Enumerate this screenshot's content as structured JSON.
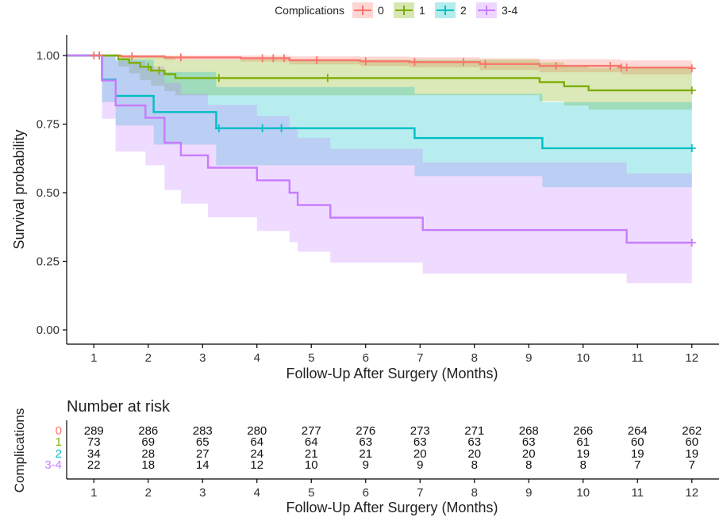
{
  "chart_data": [
    {
      "type": "line",
      "subtype": "kaplan-meier survival curve with confidence bands",
      "title": "",
      "xlabel": "Follow-Up After Surgery (Months)",
      "ylabel": "Survival probability",
      "xlim": [
        0.5,
        12.5
      ],
      "ylim": [
        0,
        1
      ],
      "x_ticks": [
        "1",
        "2",
        "3",
        "4",
        "5",
        "6",
        "7",
        "8",
        "9",
        "10",
        "11",
        "12"
      ],
      "y_ticks": [
        "0.00",
        "0.25",
        "0.50",
        "0.75",
        "1.00"
      ],
      "grid": false,
      "legend": {
        "title": "Complications",
        "position": "top",
        "entries": [
          "0",
          "1",
          "2",
          "3-4"
        ]
      },
      "series": [
        {
          "name": "0",
          "color": "#F8766D",
          "steps": [
            [
              0.5,
              1.0
            ],
            [
              1.5,
              0.997
            ],
            [
              2.3,
              0.993
            ],
            [
              3.7,
              0.99
            ],
            [
              4.6,
              0.983
            ],
            [
              5.9,
              0.979
            ],
            [
              6.8,
              0.976
            ],
            [
              8.1,
              0.969
            ],
            [
              9.2,
              0.962
            ],
            [
              10.7,
              0.956
            ],
            [
              12.0,
              0.953
            ]
          ],
          "upper": [
            [
              0.5,
              1.0
            ],
            [
              1.5,
              1.0
            ],
            [
              2.3,
              1.0
            ],
            [
              3.7,
              1.0
            ],
            [
              4.6,
              0.998
            ],
            [
              5.9,
              0.996
            ],
            [
              6.8,
              0.994
            ],
            [
              8.1,
              0.99
            ],
            [
              9.2,
              0.986
            ],
            [
              10.7,
              0.982
            ],
            [
              12.0,
              0.98
            ]
          ],
          "lower": [
            [
              0.5,
              1.0
            ],
            [
              1.5,
              0.99
            ],
            [
              2.3,
              0.984
            ],
            [
              3.7,
              0.978
            ],
            [
              4.6,
              0.968
            ],
            [
              5.9,
              0.962
            ],
            [
              6.8,
              0.957
            ],
            [
              8.1,
              0.947
            ],
            [
              9.2,
              0.939
            ],
            [
              10.7,
              0.931
            ],
            [
              12.0,
              0.926
            ]
          ],
          "censor_x": [
            1.0,
            1.1,
            1.7,
            2.6,
            4.1,
            4.3,
            4.5,
            5.1,
            6.0,
            6.9,
            7.8,
            8.2,
            9.5,
            10.5,
            10.7,
            10.8,
            12.0
          ]
        },
        {
          "name": "1",
          "color": "#7CAE00",
          "steps": [
            [
              0.5,
              1.0
            ],
            [
              1.45,
              0.986
            ],
            [
              1.65,
              0.973
            ],
            [
              1.85,
              0.959
            ],
            [
              2.05,
              0.945
            ],
            [
              2.3,
              0.932
            ],
            [
              2.5,
              0.918
            ],
            [
              9.2,
              0.903
            ],
            [
              9.65,
              0.888
            ],
            [
              10.1,
              0.873
            ],
            [
              12.0,
              0.873
            ]
          ],
          "upper": [
            [
              0.5,
              1.0
            ],
            [
              1.45,
              1.0
            ],
            [
              1.65,
              1.0
            ],
            [
              1.85,
              1.0
            ],
            [
              2.05,
              1.0
            ],
            [
              2.3,
              0.995
            ],
            [
              2.5,
              0.985
            ],
            [
              9.2,
              0.975
            ],
            [
              9.65,
              0.965
            ],
            [
              10.1,
              0.955
            ],
            [
              12.0,
              0.955
            ]
          ],
          "lower": [
            [
              0.5,
              1.0
            ],
            [
              1.45,
              0.96
            ],
            [
              1.65,
              0.935
            ],
            [
              1.85,
              0.91
            ],
            [
              2.05,
              0.89
            ],
            [
              2.3,
              0.87
            ],
            [
              2.5,
              0.855
            ],
            [
              9.2,
              0.833
            ],
            [
              9.65,
              0.818
            ],
            [
              10.1,
              0.803
            ],
            [
              12.0,
              0.803
            ]
          ],
          "censor_x": [
            2.0,
            2.2,
            3.3,
            5.3,
            12.0
          ]
        },
        {
          "name": "2",
          "color": "#00BFC4",
          "steps": [
            [
              0.5,
              1.0
            ],
            [
              1.15,
              0.912
            ],
            [
              1.4,
              0.853
            ],
            [
              2.1,
              0.794
            ],
            [
              3.25,
              0.735
            ],
            [
              6.9,
              0.699
            ],
            [
              9.25,
              0.662
            ],
            [
              12.0,
              0.662
            ]
          ],
          "upper": [
            [
              0.5,
              1.0
            ],
            [
              1.15,
              1.0
            ],
            [
              1.4,
              0.985
            ],
            [
              2.1,
              0.94
            ],
            [
              3.25,
              0.885
            ],
            [
              6.9,
              0.86
            ],
            [
              9.25,
              0.83
            ],
            [
              12.0,
              0.83
            ]
          ],
          "lower": [
            [
              0.5,
              1.0
            ],
            [
              1.15,
              0.83
            ],
            [
              1.4,
              0.745
            ],
            [
              2.1,
              0.675
            ],
            [
              3.25,
              0.6
            ],
            [
              6.9,
              0.56
            ],
            [
              9.25,
              0.52
            ],
            [
              12.0,
              0.52
            ]
          ],
          "censor_x": [
            3.3,
            4.1,
            4.45,
            12.0
          ]
        },
        {
          "name": "3-4",
          "color": "#C77CFF",
          "steps": [
            [
              0.5,
              1.0
            ],
            [
              1.15,
              0.909
            ],
            [
              1.4,
              0.818
            ],
            [
              1.95,
              0.773
            ],
            [
              2.3,
              0.682
            ],
            [
              2.6,
              0.636
            ],
            [
              3.1,
              0.591
            ],
            [
              4.0,
              0.545
            ],
            [
              4.6,
              0.5
            ],
            [
              4.75,
              0.455
            ],
            [
              5.35,
              0.409
            ],
            [
              7.05,
              0.364
            ],
            [
              10.8,
              0.318
            ],
            [
              12.0,
              0.318
            ]
          ],
          "upper": [
            [
              0.5,
              1.0
            ],
            [
              1.15,
              1.0
            ],
            [
              1.4,
              0.98
            ],
            [
              1.95,
              0.96
            ],
            [
              2.3,
              0.9
            ],
            [
              2.6,
              0.86
            ],
            [
              3.1,
              0.82
            ],
            [
              4.0,
              0.78
            ],
            [
              4.6,
              0.74
            ],
            [
              4.75,
              0.7
            ],
            [
              5.35,
              0.66
            ],
            [
              7.05,
              0.61
            ],
            [
              10.8,
              0.57
            ],
            [
              12.0,
              0.57
            ]
          ],
          "lower": [
            [
              0.5,
              1.0
            ],
            [
              1.15,
              0.77
            ],
            [
              1.4,
              0.65
            ],
            [
              1.95,
              0.6
            ],
            [
              2.3,
              0.51
            ],
            [
              2.6,
              0.46
            ],
            [
              3.1,
              0.41
            ],
            [
              4.0,
              0.36
            ],
            [
              4.6,
              0.32
            ],
            [
              4.75,
              0.285
            ],
            [
              5.35,
              0.245
            ],
            [
              7.05,
              0.205
            ],
            [
              10.8,
              0.17
            ],
            [
              12.0,
              0.17
            ]
          ],
          "censor_x": [
            12.0
          ]
        }
      ]
    },
    {
      "type": "table",
      "title": "Number at risk",
      "ylabel": "Complications",
      "xlabel": "Follow-Up After Surgery (Months)",
      "columns": [
        "1",
        "2",
        "3",
        "4",
        "5",
        "6",
        "7",
        "8",
        "9",
        "10",
        "11",
        "12"
      ],
      "rows": [
        {
          "name": "0",
          "color": "#F8766D",
          "values": [
            "289",
            "286",
            "283",
            "280",
            "277",
            "276",
            "273",
            "271",
            "268",
            "266",
            "264",
            "262"
          ]
        },
        {
          "name": "1",
          "color": "#7CAE00",
          "values": [
            "73",
            "69",
            "65",
            "64",
            "64",
            "63",
            "63",
            "63",
            "63",
            "61",
            "60",
            "60"
          ]
        },
        {
          "name": "2",
          "color": "#00BFC4",
          "values": [
            "34",
            "28",
            "27",
            "24",
            "21",
            "21",
            "20",
            "20",
            "20",
            "19",
            "19",
            "19"
          ]
        },
        {
          "name": "3-4",
          "color": "#C77CFF",
          "values": [
            "22",
            "18",
            "14",
            "12",
            "10",
            "9",
            "9",
            "8",
            "8",
            "8",
            "7",
            "7"
          ]
        }
      ]
    }
  ]
}
